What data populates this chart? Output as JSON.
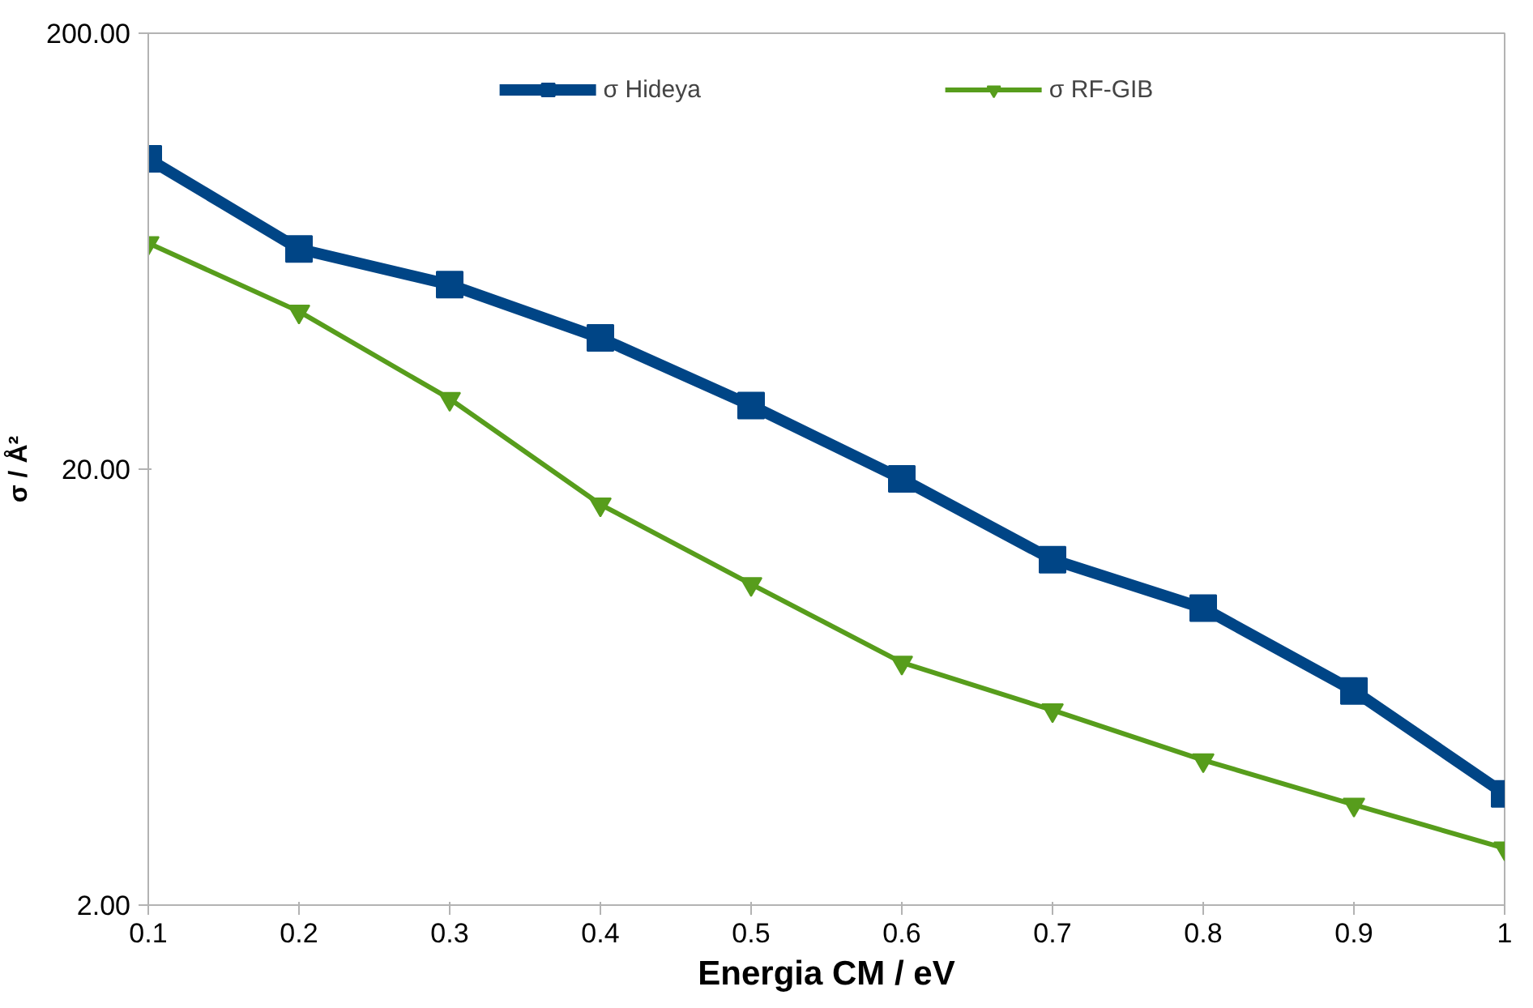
{
  "chart_data": {
    "type": "line",
    "xlabel": "Energia CM / eV",
    "ylabel": "σ / Å²",
    "x": [
      0.1,
      0.2,
      0.3,
      0.4,
      0.5,
      0.6,
      0.7,
      0.8,
      0.9,
      1
    ],
    "series": [
      {
        "name": "σ Hideya",
        "color": "#004586",
        "marker": "square",
        "values": [
          103,
          64,
          53,
          40,
          28,
          19,
          12.4,
          9.6,
          6.2,
          3.6
        ]
      },
      {
        "name": "σ RF-GIB",
        "color": "#579d1c",
        "marker": "triangle",
        "values": [
          66,
          46,
          29,
          16.6,
          10.9,
          7.2,
          5.6,
          4.3,
          3.4,
          2.7
        ]
      }
    ],
    "log": "y",
    "xlim": [
      0.1,
      1
    ],
    "xticks": [
      0.1,
      0.2,
      0.3,
      0.4,
      0.5,
      0.6,
      0.7,
      0.8,
      0.9,
      1
    ],
    "ylim": [
      2,
      200
    ],
    "yticks": [
      {
        "value": 2,
        "label": "2.00"
      },
      {
        "value": 20,
        "label": "20.00"
      },
      {
        "value": 200,
        "label": "200.00"
      }
    ],
    "grid": false,
    "legend": "top",
    "line_style": "solid"
  }
}
